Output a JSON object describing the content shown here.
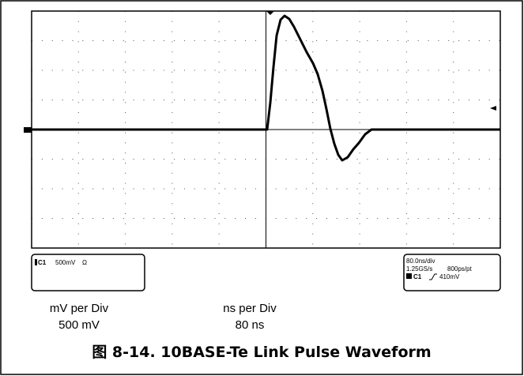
{
  "scope": {
    "channel_box": {
      "channel": "C1",
      "scale": "500mV",
      "coupling": "Ω"
    },
    "timebase_box": {
      "time_per_div": "80.0ns/div",
      "sample_rate": "1.25GS/s",
      "resolution": "800ps/pt",
      "trigger_channel": "C1",
      "trigger_level": "410mV"
    }
  },
  "labels": [
    {
      "title": "mV per Div",
      "value": "500 mV"
    },
    {
      "title": "ns per Div",
      "value": "80 ns"
    }
  ],
  "caption": "图 8-14. 10BASE-Te Link Pulse Waveform"
}
